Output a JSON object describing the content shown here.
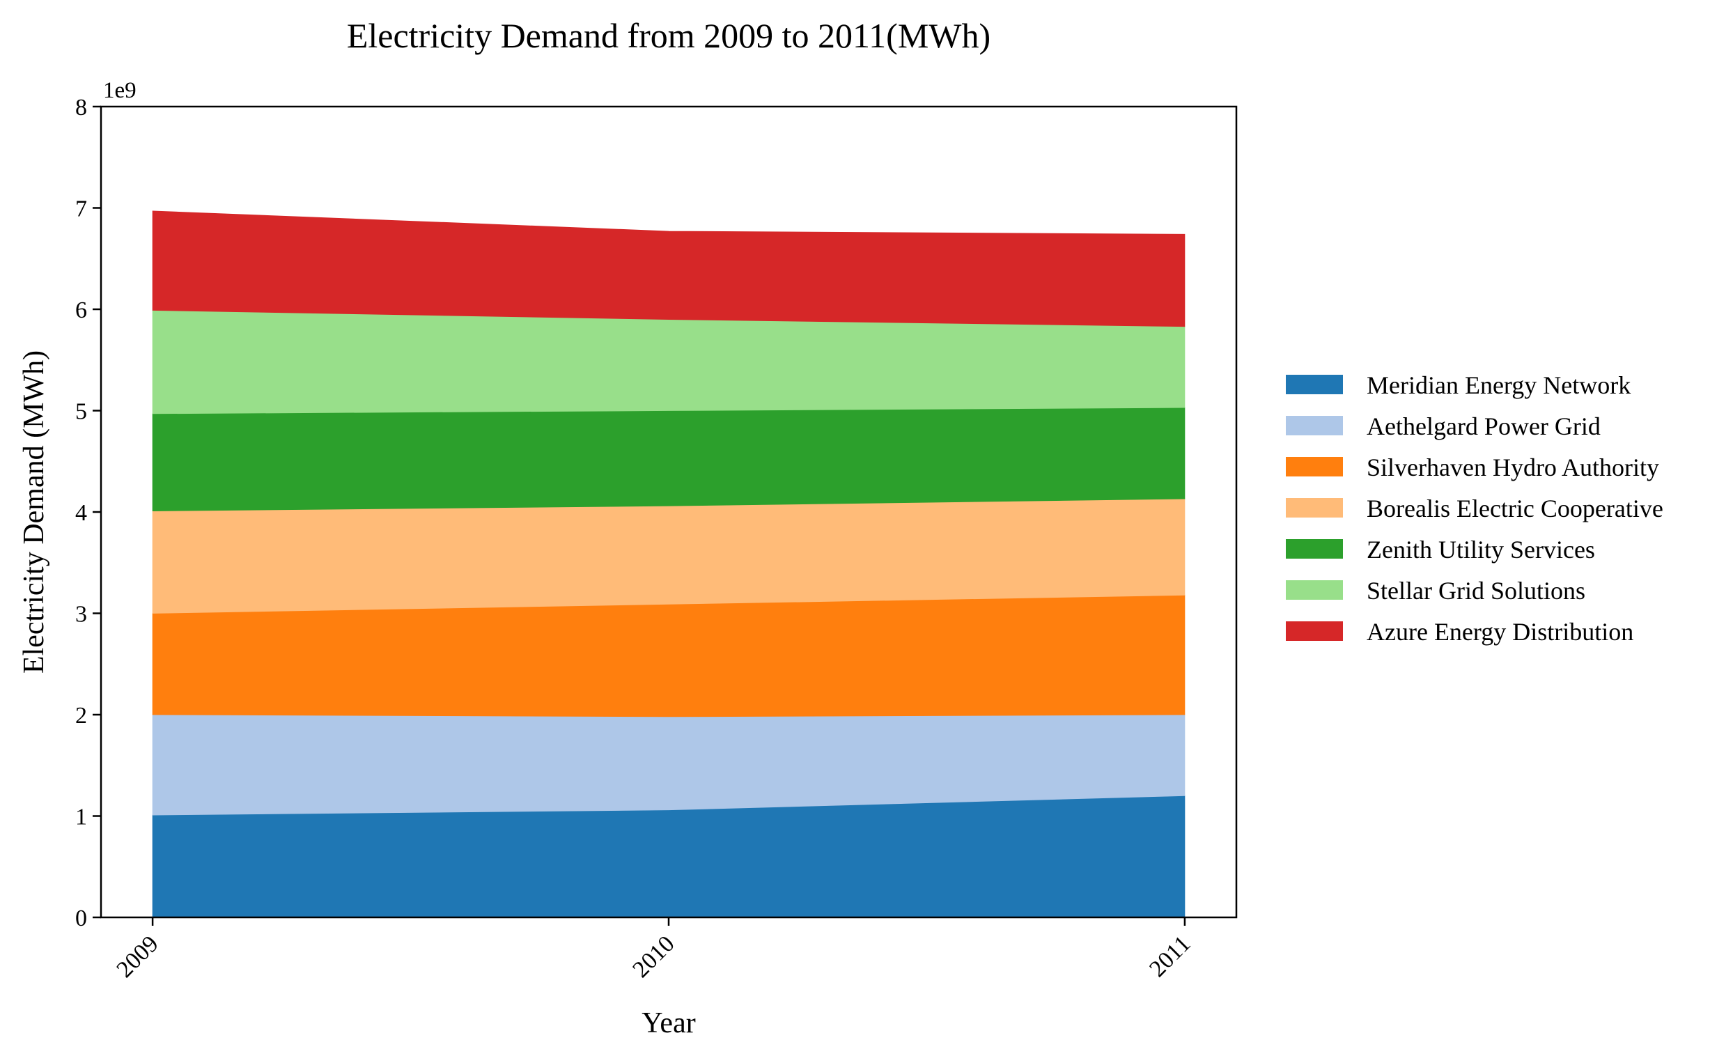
{
  "chart_data": {
    "type": "area",
    "stacked": true,
    "title": "Electricity Demand from 2009 to 2011(MWh)",
    "xlabel": "Year",
    "ylabel": "Electricity Demand (MWh)",
    "y_offset_label": "1e9",
    "y_scale_factor": 1000000000,
    "x": [
      "2009",
      "2010",
      "2011"
    ],
    "xlim": [
      -0.1,
      2.1
    ],
    "ylim": [
      0,
      8000000000
    ],
    "yticks": [
      "0",
      "1",
      "2",
      "3",
      "4",
      "5",
      "6",
      "7",
      "8"
    ],
    "grid": false,
    "legend_position": "right",
    "series": [
      {
        "name": "Meridian Energy Network",
        "color": "#1f77b4",
        "values": [
          1010000000,
          1060000000,
          1200000000
        ]
      },
      {
        "name": "Aethelgard Power Grid",
        "color": "#aec7e8",
        "values": [
          990000000,
          920000000,
          800000000
        ]
      },
      {
        "name": "Silverhaven Hydro Authority",
        "color": "#ff7f0e",
        "values": [
          1000000000,
          1110000000,
          1180000000
        ]
      },
      {
        "name": "Borealis Electric Cooperative",
        "color": "#ffbb78",
        "values": [
          1010000000,
          970000000,
          950000000
        ]
      },
      {
        "name": "Zenith Utility Services",
        "color": "#2ca02c",
        "values": [
          960000000,
          940000000,
          900000000
        ]
      },
      {
        "name": "Stellar Grid Solutions",
        "color": "#98df8a",
        "values": [
          1020000000,
          900000000,
          800000000
        ]
      },
      {
        "name": "Azure Energy Distribution",
        "color": "#d62728",
        "values": [
          980000000,
          870000000,
          910000000
        ]
      }
    ]
  }
}
